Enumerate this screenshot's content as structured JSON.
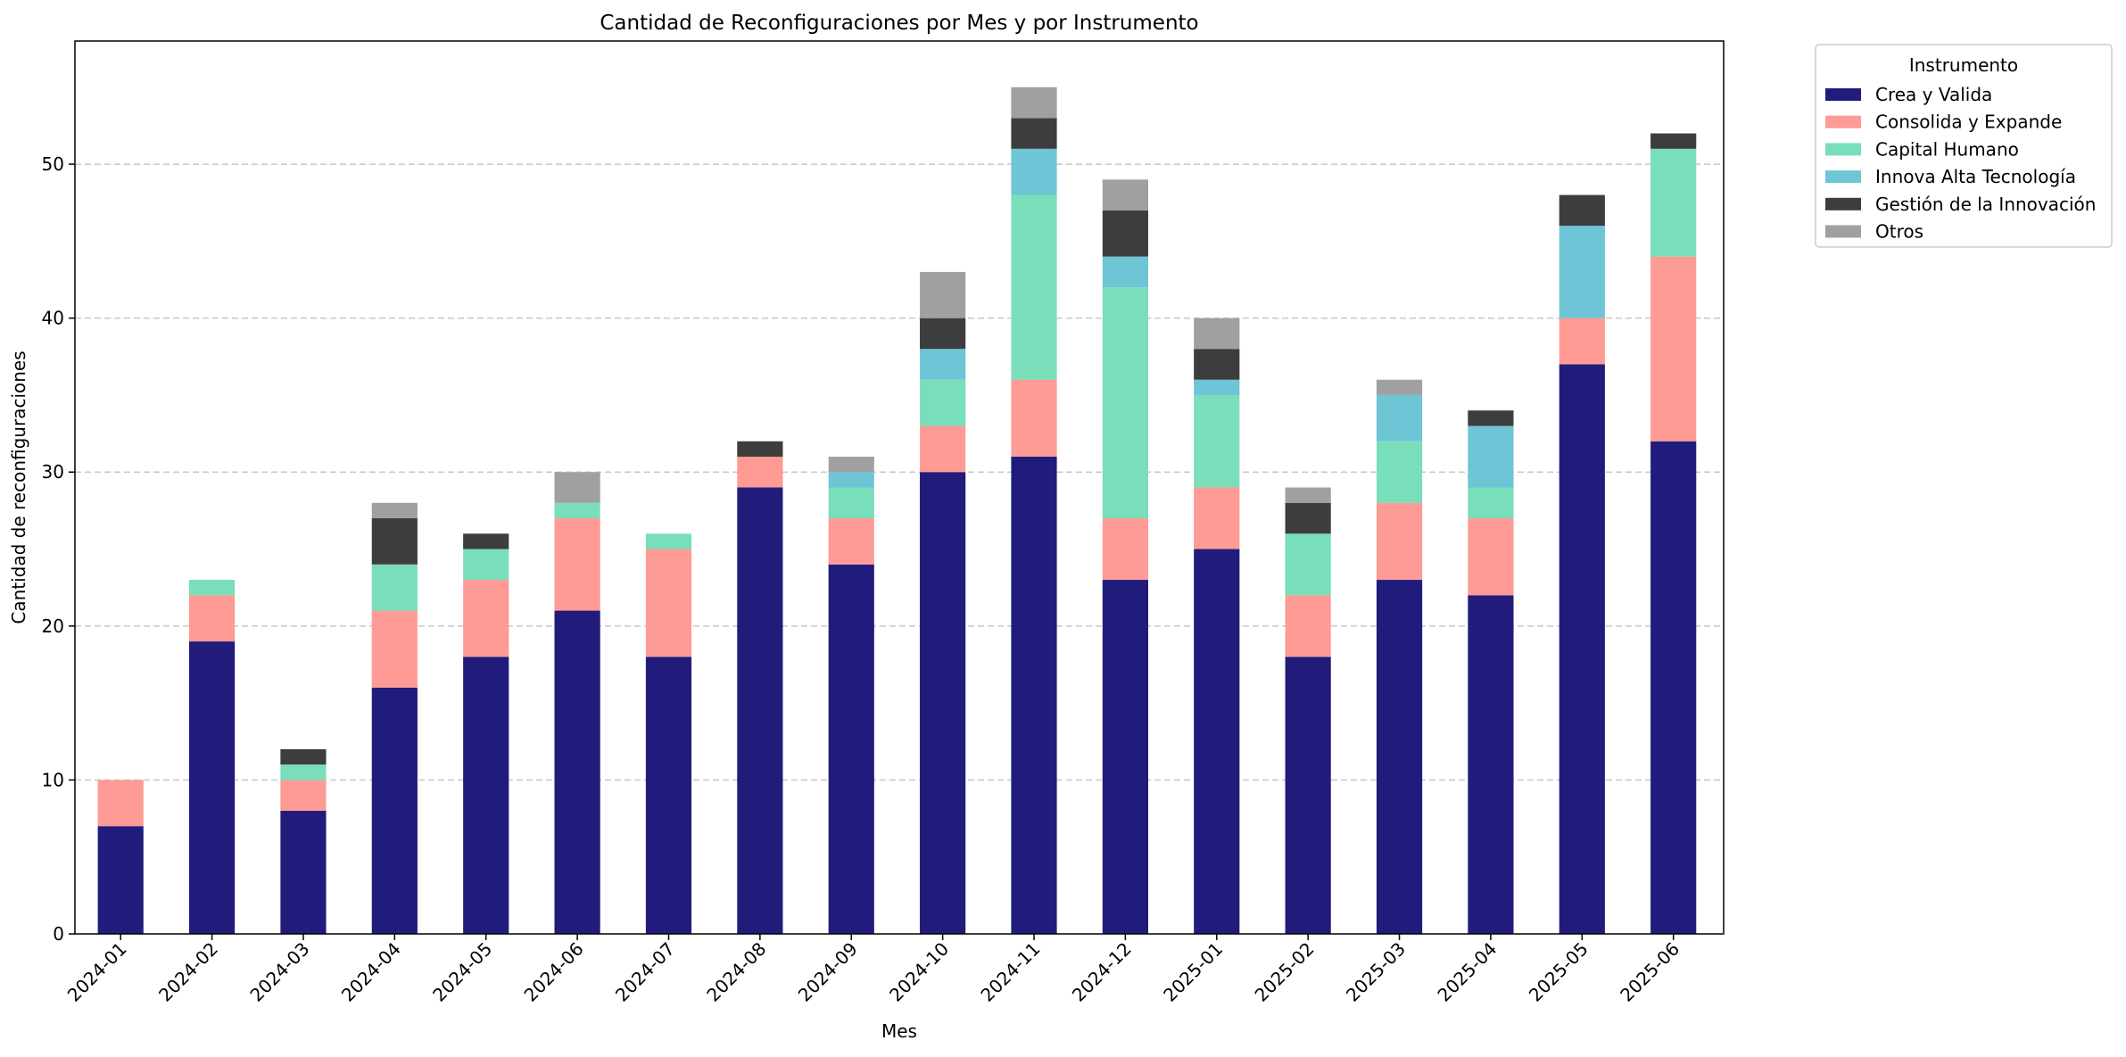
{
  "chart_data": {
    "type": "bar",
    "stacked": true,
    "title": "Cantidad de Reconfiguraciones por Mes y por Instrumento",
    "xlabel": "Mes",
    "ylabel": "Cantidad de reconfiguraciones",
    "ylim": [
      0,
      58
    ],
    "yticks": [
      0,
      10,
      20,
      30,
      40,
      50
    ],
    "grid": "y-dashed",
    "legend": {
      "title": "Instrumento",
      "placement": "outside-top-right"
    },
    "categories": [
      "2024-01",
      "2024-02",
      "2024-03",
      "2024-04",
      "2024-05",
      "2024-06",
      "2024-07",
      "2024-08",
      "2024-09",
      "2024-10",
      "2024-11",
      "2024-12",
      "2025-01",
      "2025-02",
      "2025-03",
      "2025-04",
      "2025-05",
      "2025-06"
    ],
    "series": [
      {
        "name": "Crea y Valida",
        "color": "#211c7c",
        "values": [
          7,
          19,
          8,
          16,
          18,
          21,
          18,
          29,
          24,
          30,
          31,
          23,
          25,
          18,
          23,
          22,
          37,
          32
        ]
      },
      {
        "name": "Consolida y Expande",
        "color": "#fd9b94",
        "values": [
          3,
          3,
          2,
          5,
          5,
          6,
          7,
          2,
          3,
          3,
          5,
          4,
          4,
          4,
          5,
          5,
          3,
          12
        ]
      },
      {
        "name": "Capital Humano",
        "color": "#79deba",
        "values": [
          0,
          1,
          1,
          3,
          2,
          1,
          1,
          0,
          2,
          3,
          12,
          15,
          6,
          4,
          4,
          2,
          0,
          7
        ]
      },
      {
        "name": "Innova Alta Tecnología",
        "color": "#6ec5d5",
        "values": [
          0,
          0,
          0,
          0,
          0,
          0,
          0,
          0,
          1,
          2,
          3,
          2,
          1,
          0,
          3,
          4,
          6,
          0
        ]
      },
      {
        "name": "Gestión de la Innovación",
        "color": "#3d3d3d",
        "values": [
          0,
          0,
          1,
          3,
          1,
          0,
          0,
          1,
          0,
          2,
          2,
          3,
          2,
          2,
          0,
          1,
          2,
          1
        ]
      },
      {
        "name": "Otros",
        "color": "#a0a0a0",
        "values": [
          0,
          0,
          0,
          1,
          0,
          2,
          0,
          0,
          1,
          3,
          2,
          2,
          2,
          1,
          1,
          0,
          0,
          0
        ]
      }
    ]
  }
}
